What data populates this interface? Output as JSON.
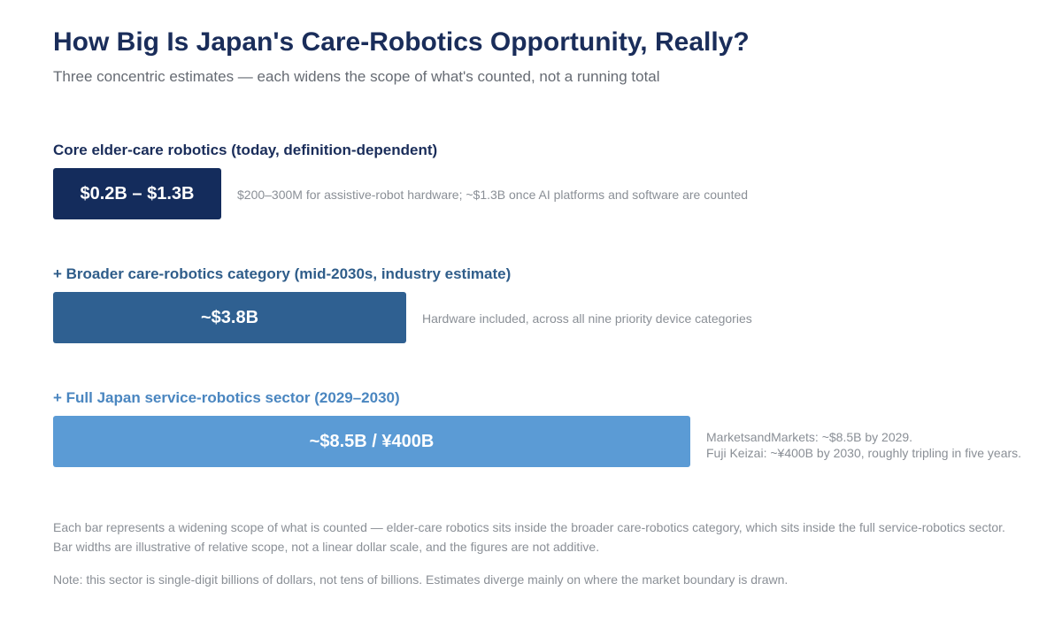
{
  "header": {
    "title": "How Big Is Japan's Care-Robotics Opportunity, Really?",
    "subtitle": "Three concentric estimates — each widens the scope of what's counted, not a running total"
  },
  "chart_data": {
    "type": "bar",
    "orientation": "horizontal",
    "title": "How Big Is Japan's Care-Robotics Opportunity, Really?",
    "subtitle": "Three concentric estimates — each widens the scope of what's counted, not a running total",
    "categories": [
      "Core elder-care robotics (today, definition-dependent)",
      "+ Broader care-robotics category (mid-2030s, industry estimate)",
      "+ Full Japan service-robotics sector (2029–2030)"
    ],
    "series": [
      {
        "values_usd_billion_low": [
          0.2,
          3.8,
          8.5
        ],
        "values_usd_billion_high": [
          1.3,
          3.8,
          8.5
        ],
        "value_labels": [
          "$0.2B – $1.3B",
          "~$3.8B",
          "~$8.5B / ¥400B"
        ]
      }
    ],
    "relative_scope": [
      1,
      2.1,
      3.79
    ],
    "scale_note": "illustrative, not linear",
    "colors": [
      "#142c5c",
      "#2f6091",
      "#5b9bd5"
    ],
    "label_colors": [
      "#1a2d5a",
      "#2f5d8a",
      "#4a86c0"
    ],
    "notes": [
      [
        "$200–300M for assistive-robot hardware; ~$1.3B once AI platforms and software are counted"
      ],
      [
        "Hardware included, across all nine priority device categories"
      ],
      [
        "MarketsandMarkets: ~$8.5B by 2029.",
        "Fuji Keizai: ~¥400B by 2030, roughly tripling in five years."
      ]
    ],
    "footnote": [
      "Each bar represents a widening scope of what is counted — elder-care robotics sits inside the broader care-robotics category, which sits inside the full service-robotics sector.",
      "Bar widths are illustrative of relative scope, not a linear dollar scale, and the figures are not additive."
    ],
    "note": "Note: this sector is single-digit billions of dollars, not tens of billions. Estimates diverge mainly on where the market boundary is drawn.",
    "grid": false,
    "legend": "none"
  }
}
